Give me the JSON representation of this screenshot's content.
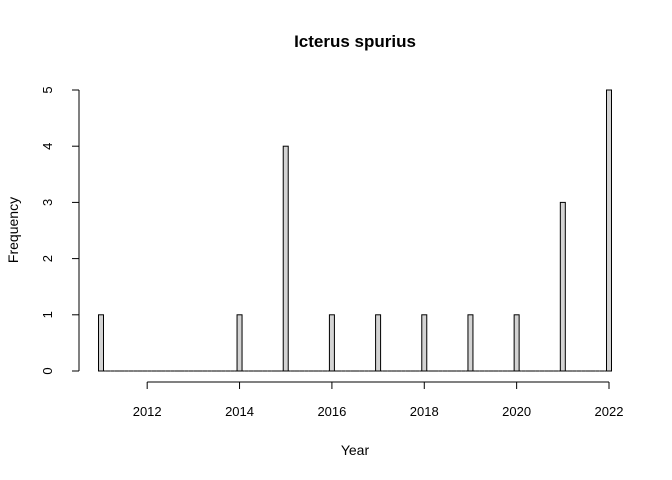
{
  "chart_data": {
    "type": "bar",
    "title": "Icterus spurius",
    "xlabel": "Year",
    "ylabel": "Frequency",
    "x_range": [
      2011,
      2022
    ],
    "ylim": [
      0,
      5
    ],
    "x_ticks": [
      2012,
      2014,
      2016,
      2018,
      2020,
      2022
    ],
    "y_ticks": [
      0,
      1,
      2,
      3,
      4,
      5
    ],
    "grid": false,
    "legend": "none",
    "bar_fill": "#d3d3d3",
    "bar_stroke": "#000000",
    "x": [
      2011,
      2012,
      2013,
      2014,
      2015,
      2016,
      2017,
      2018,
      2019,
      2020,
      2021,
      2022
    ],
    "values": [
      1,
      0,
      0,
      1,
      4,
      1,
      1,
      1,
      1,
      1,
      3,
      5
    ]
  }
}
